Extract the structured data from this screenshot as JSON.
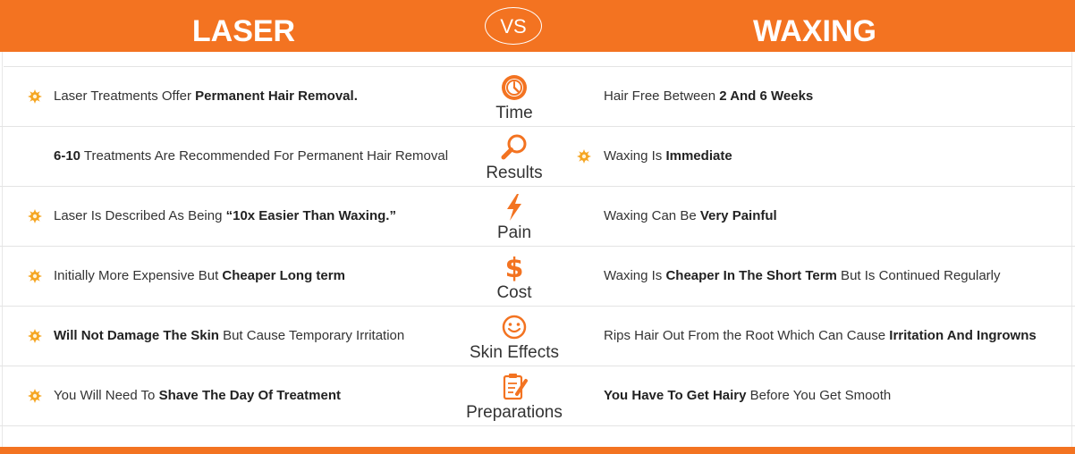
{
  "header": {
    "left": "LASER",
    "vs": "VS",
    "right": "WAXING"
  },
  "colors": {
    "accent": "#f37321",
    "text": "#333333",
    "star": "#f5a623"
  },
  "rows": [
    {
      "category": "Time",
      "icon": "clock-icon",
      "left_star": true,
      "right_star": false,
      "left": [
        {
          "t": "Laser Treatments Offer ",
          "b": false
        },
        {
          "t": "Permanent Hair Removal.",
          "b": true
        }
      ],
      "right": [
        {
          "t": "Hair Free Between ",
          "b": false
        },
        {
          "t": "2 And 6 Weeks",
          "b": true
        }
      ]
    },
    {
      "category": "Results",
      "icon": "magnifier-icon",
      "left_star": false,
      "right_star": true,
      "left": [
        {
          "t": "6-10",
          "b": true
        },
        {
          "t": " Treatments Are Recommended For Permanent Hair Removal",
          "b": false
        }
      ],
      "right": [
        {
          "t": "Waxing Is ",
          "b": false
        },
        {
          "t": "Immediate",
          "b": true
        }
      ]
    },
    {
      "category": "Pain",
      "icon": "lightning-icon",
      "left_star": true,
      "right_star": false,
      "left": [
        {
          "t": "Laser Is Described As Being ",
          "b": false
        },
        {
          "t": "“10x Easier Than Waxing.”",
          "b": true
        }
      ],
      "right": [
        {
          "t": "Waxing Can Be ",
          "b": false
        },
        {
          "t": "Very Painful",
          "b": true
        }
      ]
    },
    {
      "category": "Cost",
      "icon": "dollar-icon",
      "left_star": true,
      "right_star": false,
      "left": [
        {
          "t": "Initially More Expensive But ",
          "b": false
        },
        {
          "t": "Cheaper Long term",
          "b": true
        }
      ],
      "right": [
        {
          "t": "Waxing Is ",
          "b": false
        },
        {
          "t": "Cheaper In The Short Term",
          "b": true
        },
        {
          "t": " But Is Continued Regularly",
          "b": false
        }
      ]
    },
    {
      "category": "Skin Effects",
      "icon": "smiley-icon",
      "left_star": true,
      "right_star": false,
      "left": [
        {
          "t": "Will Not Damage The Skin",
          "b": true
        },
        {
          "t": " But Cause Temporary Irritation",
          "b": false
        }
      ],
      "right": [
        {
          "t": "Rips Hair Out From the Root Which Can Cause ",
          "b": false
        },
        {
          "t": "Irritation And Ingrowns",
          "b": true
        }
      ]
    },
    {
      "category": "Preparations",
      "icon": "clipboard-pencil-icon",
      "left_star": true,
      "right_star": false,
      "left": [
        {
          "t": "You Will Need To ",
          "b": false
        },
        {
          "t": "Shave The Day Of Treatment",
          "b": true
        }
      ],
      "right": [
        {
          "t": "You Have To Get Hairy",
          "b": true
        },
        {
          "t": " Before You Get Smooth",
          "b": false
        }
      ]
    }
  ]
}
